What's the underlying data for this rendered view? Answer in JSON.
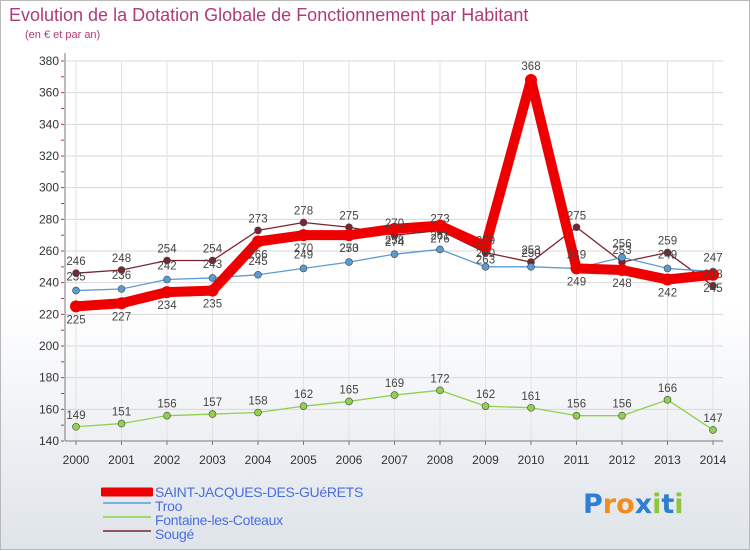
{
  "title": "Evolution de la Dotation Globale de Fonctionnement par Habitant",
  "subtitle": "(en € et par an)",
  "logo": {
    "letters": [
      "P",
      "r",
      "o",
      "x",
      "i",
      "t",
      "i"
    ],
    "colors": [
      "#2f7fd0",
      "#f28c1e",
      "#f28c1e",
      "#2f7fd0",
      "#8cc63f",
      "#2f7fd0",
      "#8cc63f"
    ]
  },
  "chart_data": {
    "type": "line",
    "title": "Evolution de la Dotation Globale de Fonctionnement par Habitant",
    "ylabel": "(en € et par an)",
    "ylim": [
      140,
      380
    ],
    "yticks": [
      140,
      160,
      180,
      200,
      220,
      240,
      260,
      280,
      300,
      320,
      340,
      360,
      380
    ],
    "categories": [
      "2000",
      "2001",
      "2002",
      "2003",
      "2004",
      "2005",
      "2006",
      "2007",
      "2008",
      "2009",
      "2010",
      "2011",
      "2012",
      "2013",
      "2014"
    ],
    "grid": true,
    "series": [
      {
        "name": "SAINT-JACQUES-DES-GUéRETS",
        "color": "#ee0000",
        "width": "thick",
        "values": [
          225,
          227,
          234,
          235,
          266,
          270,
          270,
          274,
          276,
          263,
          368,
          249,
          248,
          242,
          245
        ]
      },
      {
        "name": "Troo",
        "color": "#5b9bd5",
        "width": "thin",
        "values": [
          235,
          236,
          242,
          243,
          245,
          249,
          253,
          258,
          261,
          250,
          250,
          249,
          256,
          249,
          247
        ]
      },
      {
        "name": "Fontaine-les-Coteaux",
        "color": "#8fd14f",
        "width": "thin",
        "values": [
          149,
          151,
          156,
          157,
          158,
          162,
          165,
          169,
          172,
          162,
          161,
          156,
          156,
          166,
          147
        ]
      },
      {
        "name": "Sougé",
        "color": "#7a2430",
        "width": "thin",
        "values": [
          246,
          248,
          254,
          254,
          273,
          278,
          275,
          270,
          273,
          259,
          253,
          275,
          253,
          259,
          238
        ]
      }
    ],
    "legend_position": "bottom-left"
  }
}
